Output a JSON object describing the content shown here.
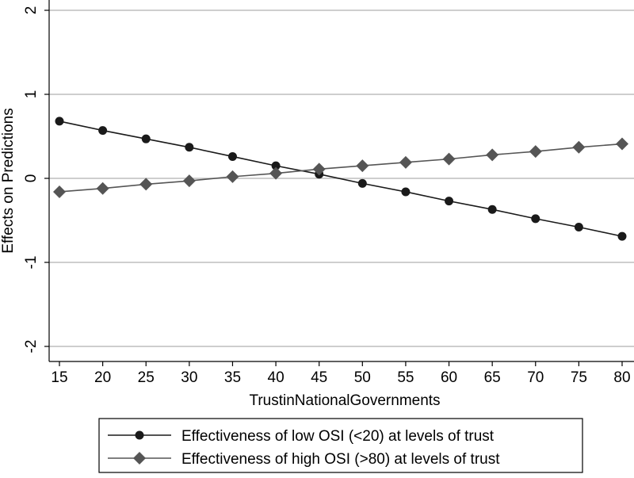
{
  "chart_data": {
    "type": "line",
    "title": "",
    "xlabel": "TrustinNationalGovernments",
    "ylabel": "Effects on Predictions",
    "x": [
      15,
      20,
      25,
      30,
      35,
      40,
      45,
      50,
      55,
      60,
      65,
      70,
      75,
      80
    ],
    "xlim": [
      15,
      80
    ],
    "ylim": [
      -2,
      2
    ],
    "xticks": [
      "15",
      "20",
      "25",
      "30",
      "35",
      "40",
      "45",
      "50",
      "55",
      "60",
      "65",
      "70",
      "75",
      "80"
    ],
    "yticks": [
      "-2",
      "-1",
      "0",
      "1",
      "2"
    ],
    "ytick_values": [
      -2,
      -1,
      0,
      1,
      2
    ],
    "grid": "horizontal",
    "legend_position": "bottom",
    "series": [
      {
        "name": "Effectiveness of low OSI (<20) at levels of trust",
        "marker": "circle",
        "color": "#1a1a1a",
        "values": [
          0.68,
          0.57,
          0.47,
          0.37,
          0.26,
          0.15,
          0.05,
          -0.06,
          -0.16,
          -0.27,
          -0.37,
          -0.48,
          -0.58,
          -0.69
        ]
      },
      {
        "name": "Effectiveness of high OSI (>80) at levels of trust",
        "marker": "diamond",
        "color": "#555555",
        "values": [
          -0.16,
          -0.12,
          -0.07,
          -0.03,
          0.02,
          0.06,
          0.11,
          0.15,
          0.19,
          0.23,
          0.28,
          0.32,
          0.37,
          0.41
        ]
      }
    ]
  }
}
